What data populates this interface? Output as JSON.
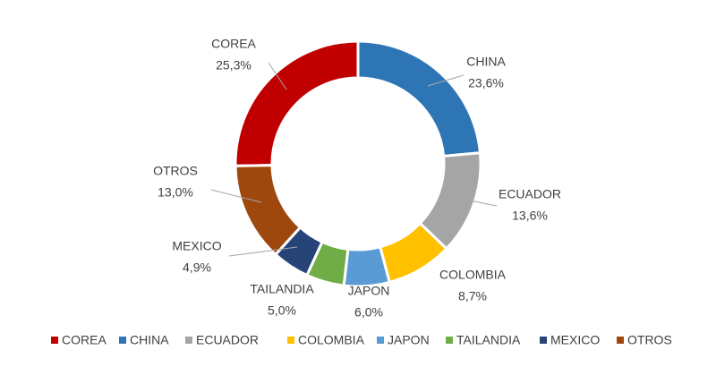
{
  "chart_data": {
    "type": "pie",
    "categories": [
      "COREA",
      "CHINA",
      "ECUADOR",
      "COLOMBIA",
      "JAPON",
      "TAILANDIA",
      "MEXICO",
      "OTROS"
    ],
    "values": [
      25.3,
      23.6,
      13.6,
      8.7,
      6.0,
      5.0,
      4.9,
      13.0
    ],
    "value_labels": [
      "25,3%",
      "23,6%",
      "13,6%",
      "8,7%",
      "6,0%",
      "5,0%",
      "4,9%",
      "13,0%"
    ],
    "colors": [
      "#c00000",
      "#2e75b6",
      "#a5a5a5",
      "#ffc000",
      "#5b9bd5",
      "#70ad47",
      "#264478",
      "#9e480e"
    ],
    "legend": "bottom"
  }
}
